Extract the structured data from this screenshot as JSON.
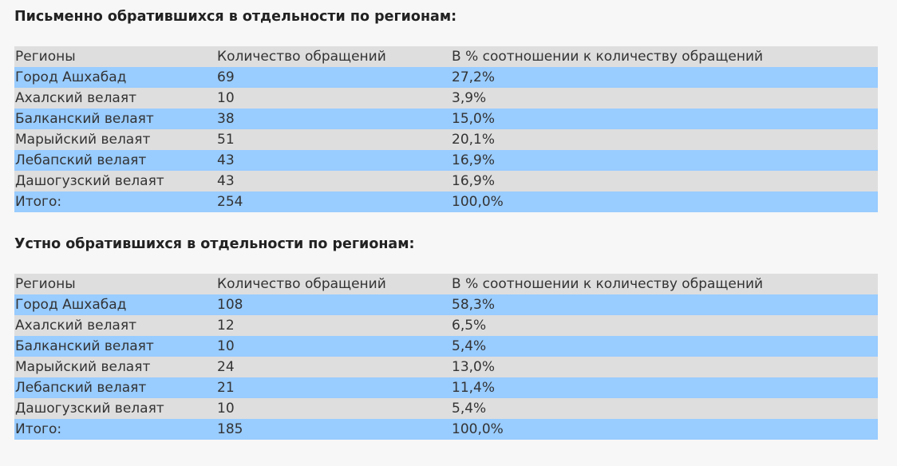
{
  "written": {
    "heading": "Письменно обратившихся в отдельности по регионам:",
    "headers": [
      "Регионы",
      "Количество обращений",
      "В % соотношении к количеству обращений"
    ],
    "rows": [
      [
        "Город Ашхабад",
        "69",
        "27,2%"
      ],
      [
        "Ахалский велаят",
        "10",
        "3,9%"
      ],
      [
        "Балканский велаят",
        "38",
        "15,0%"
      ],
      [
        "Марыйский велаят",
        "51",
        "20,1%"
      ],
      [
        "Лебапский велаят",
        "43",
        "16,9%"
      ],
      [
        "Дашогузский велаят",
        "43",
        "16,9%"
      ],
      [
        "Итого:",
        "254",
        "100,0%"
      ]
    ]
  },
  "oral": {
    "heading": "Устно обратившихся в отдельности по регионам:",
    "headers": [
      "Регионы",
      "Количество обращений",
      "В % соотношении к количеству обращений"
    ],
    "rows": [
      [
        "Город Ашхабад",
        "108",
        "58,3%"
      ],
      [
        "Ахалский велаят",
        "12",
        "6,5%"
      ],
      [
        "Балканский велаят",
        "10",
        "5,4%"
      ],
      [
        "Марыйский велаят",
        "24",
        "13,0%"
      ],
      [
        "Лебапский велаят",
        "21",
        "11,4%"
      ],
      [
        "Дашогузский велаят",
        "10",
        "5,4%"
      ],
      [
        "Итого:",
        "185",
        "100,0%"
      ]
    ]
  },
  "colors": {
    "header_row": "#dedede",
    "stripe_blue": "#99ccff",
    "stripe_gray": "#dedede",
    "background": "#f7f7f7"
  }
}
